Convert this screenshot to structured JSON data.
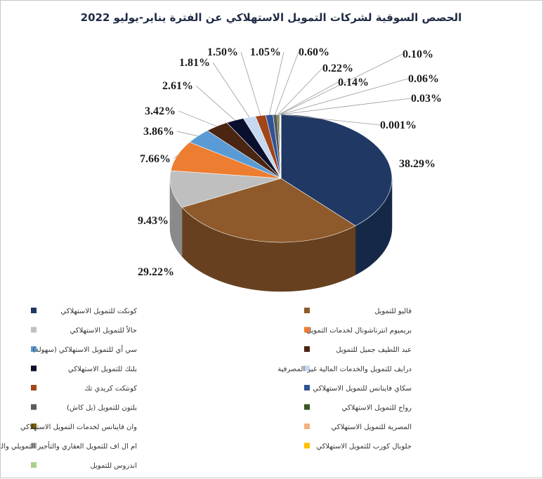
{
  "chart_data": {
    "type": "pie",
    "title": "الحصص السوقية لشركات التمويل الاستهلاكي عن الفترة يناير-يوليو 2022",
    "slices": [
      {
        "name": "كونكت للتمويل الاستهلاكي",
        "value": 38.29,
        "label": "38.29%",
        "color": "#1f3864"
      },
      {
        "name": "فاليو للتمويل",
        "value": 29.22,
        "label": "29.22%",
        "color": "#8f5a2b"
      },
      {
        "name": "حالاً للتمويل الاستهلاكي",
        "value": 9.43,
        "label": "9.43%",
        "color": "#bfbfbf"
      },
      {
        "name": "بريميوم انترناشونال لخدمات التمويل",
        "value": 7.66,
        "label": "7.66%",
        "color": "#ed7d31"
      },
      {
        "name": "سي أي للتمويل الاستهلاكي (سهولة)",
        "value": 3.86,
        "label": "3.86%",
        "color": "#5b9bd5"
      },
      {
        "name": "عبد اللطيف جميل للتمويل",
        "value": 3.42,
        "label": "3.42%",
        "color": "#4a2511"
      },
      {
        "name": "بلنك للتمويل الاستهلاكي",
        "value": 2.61,
        "label": "2.61%",
        "color": "#0a0f2e"
      },
      {
        "name": "درايف للتمويل والخدمات المالية غير المصرفية",
        "value": 1.81,
        "label": "1.81%",
        "color": "#c5d9f1"
      },
      {
        "name": "كونتكت كريدي تك",
        "value": 1.5,
        "label": "1.50%",
        "color": "#a0461a"
      },
      {
        "name": "سكاي فاينانس للتمويل الاستهلاكي",
        "value": 1.05,
        "label": "1.05%",
        "color": "#2f5496"
      },
      {
        "name": "بلتون للتمويل (بل كاش)",
        "value": 0.6,
        "label": "0.60%",
        "color": "#595959"
      },
      {
        "name": "رواج للتمويل الاستهلاكي",
        "value": 0.22,
        "label": "0.22%",
        "color": "#375623"
      },
      {
        "name": "وان فاينانس لخدمات التمويل الاستهلاكي",
        "value": 0.14,
        "label": "0.14%",
        "color": "#7f6000"
      },
      {
        "name": "المصرية للتمويل الاستهلاكي",
        "value": 0.1,
        "label": "0.10%",
        "color": "#f4b183"
      },
      {
        "name": "ام ال اف للتمويل العقاري والتأجير التمويلي والتخصيم والتمويل الاستهلاكي",
        "value": 0.06,
        "label": "0.06%",
        "color": "#a6a6a6"
      },
      {
        "name": "جلوبال كورب للتمويل الاستهلاكي",
        "value": 0.03,
        "label": "0.03%",
        "color": "#ffc000"
      },
      {
        "name": "اندروس للتمويل",
        "value": 0.001,
        "label": "0.001%",
        "color": "#a9d18e"
      }
    ],
    "legend_position": "bottom"
  }
}
